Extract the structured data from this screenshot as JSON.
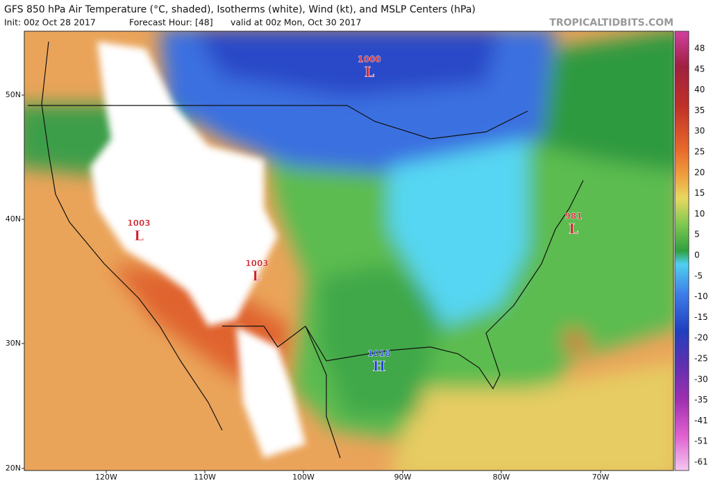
{
  "header": {
    "title": "GFS 850 hPa Air Temperature (°C, shaded), Isotherms (white), Wind (kt), and MSLP Centers (hPa)",
    "init": "Init: 00z Oct 28 2017",
    "forecast_hour": "Forecast Hour: [48]",
    "valid": "valid at 00z Mon, Oct 30 2017",
    "source": "TROPICALTIDBITS.COM"
  },
  "map": {
    "latitude_labels": [
      "50N",
      "40N",
      "30N",
      "20N"
    ],
    "longitude_labels": [
      "120W",
      "110W",
      "100W",
      "90W",
      "80W",
      "70W"
    ],
    "pressure_centers": [
      {
        "value": "1000",
        "symbol": "L"
      },
      {
        "value": "1003",
        "symbol": "L"
      },
      {
        "value": "1003",
        "symbol": "L"
      },
      {
        "value": "1018",
        "symbol": "H"
      },
      {
        "value": "981",
        "symbol": "L"
      }
    ]
  },
  "colorbar": {
    "ticks": [
      "48",
      "45",
      "40",
      "35",
      "30",
      "25",
      "20",
      "15",
      "10",
      "5",
      "0",
      "-5",
      "-10",
      "-15",
      "-20",
      "-25",
      "-30",
      "-35",
      "-41",
      "-51",
      "-61"
    ]
  }
}
